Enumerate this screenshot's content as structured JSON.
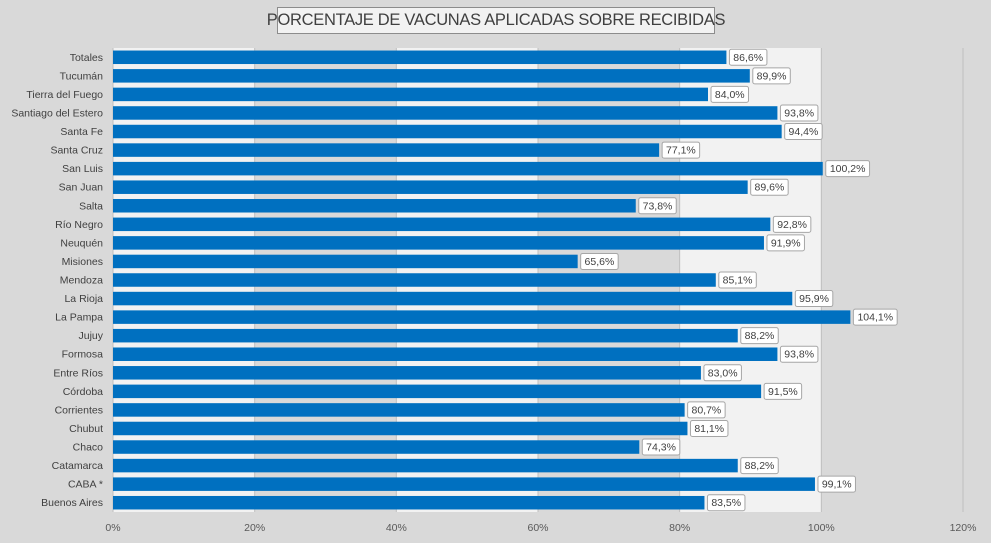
{
  "chart_data": {
    "type": "bar",
    "orientation": "horizontal",
    "title": "PORCENTAJE DE VACUNAS APLICADAS SOBRE RECIBIDAS",
    "categories": [
      "Totales",
      "Tucumán",
      "Tierra del Fuego",
      "Santiago del Estero",
      "Santa Fe",
      "Santa Cruz",
      "San Luis",
      "San Juan",
      "Salta",
      "Río Negro",
      "Neuquén",
      "Misiones",
      "Mendoza",
      "La Rioja",
      "La Pampa",
      "Jujuy",
      "Formosa",
      "Entre Ríos",
      "Córdoba",
      "Corrientes",
      "Chubut",
      "Chaco",
      "Catamarca",
      "CABA *",
      "Buenos Aires"
    ],
    "values": [
      86.6,
      89.9,
      84.0,
      93.8,
      94.4,
      77.1,
      100.2,
      89.6,
      73.8,
      92.8,
      91.9,
      65.6,
      85.1,
      95.9,
      104.1,
      88.2,
      93.8,
      83.0,
      91.5,
      80.7,
      81.1,
      74.3,
      88.2,
      99.1,
      83.5
    ],
    "data_labels": [
      "86,6%",
      "89,9%",
      "84,0%",
      "93,8%",
      "94,4%",
      "77,1%",
      "100,2%",
      "89,6%",
      "73,8%",
      "92,8%",
      "91,9%",
      "65,6%",
      "85,1%",
      "95,9%",
      "104,1%",
      "88,2%",
      "93,8%",
      "83,0%",
      "91,5%",
      "80,7%",
      "81,1%",
      "74,3%",
      "88,2%",
      "99,1%",
      "83,5%"
    ],
    "xlim": [
      0,
      120
    ],
    "xticks": [
      0,
      20,
      40,
      60,
      80,
      100,
      120
    ],
    "xtick_labels": [
      "0%",
      "20%",
      "40%",
      "60%",
      "80%",
      "100%",
      "120%"
    ],
    "xlabel": "",
    "ylabel": "",
    "grid": true,
    "colors": {
      "bar": "#0070c0",
      "band_light": "#f2f2f2",
      "band_dark": "#d9d9d9",
      "gridline": "#bfbfbf",
      "label_border": "#a6a6a6"
    }
  }
}
